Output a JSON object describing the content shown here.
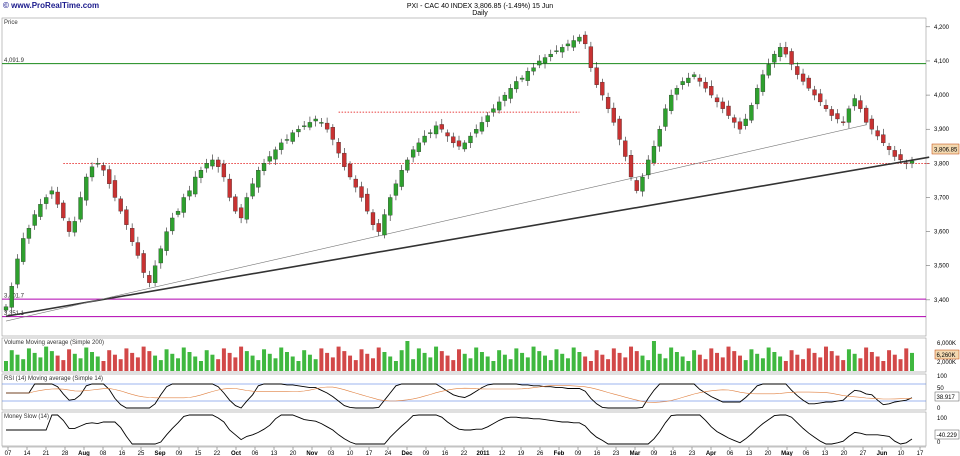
{
  "header": {
    "watermark": "© www.ProRealTime.com",
    "title": "PXI - CAC 40 INDEX   3,806.85 (-1.49%)   15 Jun",
    "subtitle": "Daily"
  },
  "chart_data": [
    {
      "type": "candlestick",
      "panel_label": "Price",
      "ylim": [
        3300,
        4220
      ],
      "y_ticks": [
        "4,200",
        "4,100",
        "4,000",
        "3,900",
        "3,800",
        "3,700",
        "3,600",
        "3,500",
        "3,400"
      ],
      "last_price_label": "3,806.85",
      "levels": [
        {
          "label": "4,091.9",
          "value": 4092,
          "color": "#1a8a1a"
        },
        {
          "label": "3,401.7",
          "value": 3402,
          "color": "#b000b0"
        },
        {
          "label": "3,351.1",
          "value": 3351,
          "color": "#b000b0"
        }
      ],
      "x_ticks": [
        "07",
        "14",
        "21",
        "28",
        "Aug",
        "08",
        "16",
        "25",
        "Sep",
        "09",
        "15",
        "22",
        "Oct",
        "06",
        "13",
        "20",
        "Nov",
        "03",
        "10",
        "17",
        "24",
        "Dec",
        "09",
        "16",
        "22",
        "2011",
        "12",
        "19",
        "26",
        "Feb",
        "09",
        "16",
        "23",
        "Mar",
        "09",
        "16",
        "23",
        "Apr",
        "06",
        "13",
        "20",
        "May",
        "06",
        "13",
        "20",
        "27",
        "Jun",
        "10",
        "17"
      ],
      "ohlc_note": "approximate daily path read from the figure",
      "close_path": [
        3380,
        3440,
        3520,
        3580,
        3610,
        3650,
        3680,
        3700,
        3720,
        3680,
        3640,
        3600,
        3630,
        3700,
        3760,
        3790,
        3800,
        3780,
        3740,
        3700,
        3660,
        3620,
        3570,
        3530,
        3480,
        3450,
        3500,
        3550,
        3600,
        3640,
        3660,
        3700,
        3720,
        3760,
        3780,
        3800,
        3810,
        3790,
        3760,
        3700,
        3660,
        3640,
        3700,
        3740,
        3780,
        3800,
        3820,
        3840,
        3860,
        3870,
        3890,
        3900,
        3910,
        3920,
        3930,
        3920,
        3900,
        3870,
        3830,
        3790,
        3760,
        3730,
        3700,
        3660,
        3620,
        3600,
        3650,
        3700,
        3740,
        3780,
        3810,
        3840,
        3860,
        3880,
        3890,
        3910,
        3900,
        3880,
        3860,
        3850,
        3860,
        3880,
        3900,
        3920,
        3940,
        3960,
        3980,
        4000,
        4020,
        4040,
        4050,
        4070,
        4080,
        4100,
        4110,
        4120,
        4130,
        4140,
        4150,
        4160,
        4170,
        4150,
        4080,
        4030,
        4000,
        3960,
        3920,
        3870,
        3820,
        3760,
        3720,
        3760,
        3810,
        3850,
        3900,
        3960,
        4000,
        4020,
        4040,
        4050,
        4060,
        4040,
        4020,
        4000,
        3980,
        3960,
        3940,
        3920,
        3900,
        3930,
        3970,
        4020,
        4060,
        4090,
        4120,
        4140,
        4120,
        4090,
        4060,
        4040,
        4020,
        4000,
        3980,
        3960,
        3940,
        3930,
        3920,
        3960,
        3990,
        3960,
        3920,
        3900,
        3880,
        3860,
        3840,
        3820,
        3810,
        3800,
        3807
      ],
      "trendlines": [
        {
          "from": [
            0,
            3352
          ],
          "to": [
            161,
            3818
          ],
          "style": "thick"
        },
        {
          "from": [
            0,
            3338
          ],
          "to": [
            150,
            3913
          ],
          "style": "thin"
        }
      ],
      "dotted_resistance": [
        {
          "from": [
            10,
            3800
          ],
          "to": [
            161,
            3800
          ]
        },
        {
          "from": [
            58,
            3950
          ],
          "to": [
            100,
            3950
          ]
        }
      ]
    },
    {
      "type": "bar",
      "panel_label": "Volume  Moving average (Simple 200)",
      "last_value_label": "6,260K",
      "y_ticks": [
        "6,000K",
        "2,000K"
      ]
    },
    {
      "type": "line",
      "panel_label": "RSI (14)   Moving average (Simple 14)",
      "last_value_label": "38.917",
      "y_ticks": [
        "100",
        "50",
        "0"
      ]
    },
    {
      "type": "line",
      "panel_label": "Money Slow (14)",
      "last_value_label": "-40.229",
      "y_ticks": [
        "100",
        "0"
      ]
    }
  ]
}
